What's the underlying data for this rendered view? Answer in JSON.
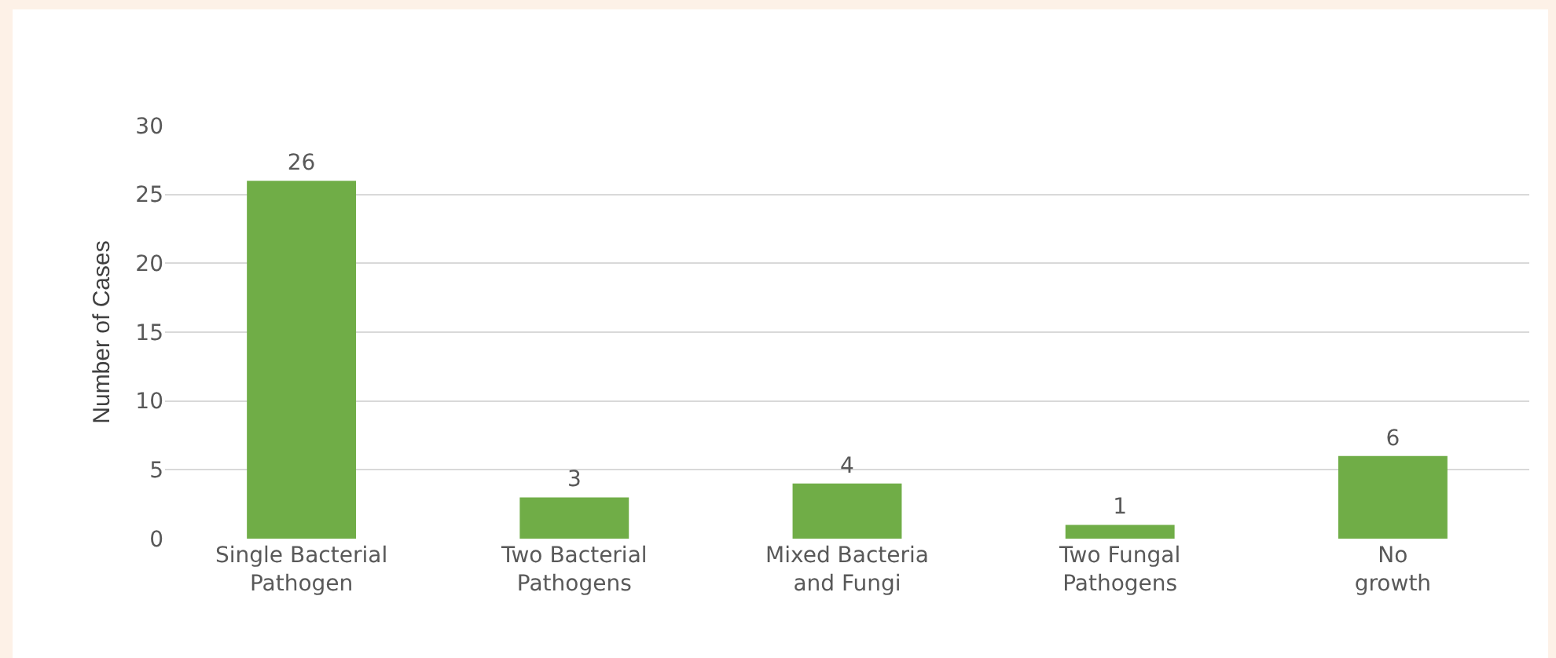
{
  "chart_data": {
    "type": "bar",
    "ylabel": "Number of Cases",
    "categories": [
      "Single Bacterial Pathogen",
      "Two Bacterial Pathogens",
      "Mixed Bacteria and Fungi",
      "Two Fungal Pathogens",
      "No growth"
    ],
    "values": [
      26,
      3,
      4,
      1,
      6
    ],
    "color": "#70ad47",
    "ylim": [
      0,
      30
    ],
    "yticks": [
      0,
      5,
      10,
      15,
      20,
      25,
      30
    ],
    "grid": "y",
    "data_labels": true
  }
}
